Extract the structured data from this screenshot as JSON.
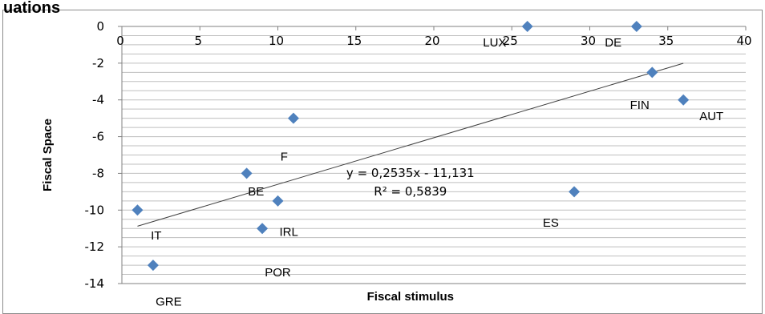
{
  "header": {
    "clipped_title": "uations"
  },
  "chart_data": {
    "type": "scatter",
    "xlabel": "Fiscal stimulus",
    "ylabel": "Fiscal Space",
    "xlim": [
      0,
      40
    ],
    "ylim": [
      -14,
      0
    ],
    "x_ticks": [
      0,
      5,
      10,
      15,
      20,
      25,
      30,
      35,
      40
    ],
    "y_ticks": [
      0,
      -2,
      -4,
      -6,
      -8,
      -10,
      -12,
      -14
    ],
    "x_tick_labels": [
      "0",
      "5",
      "10",
      "15",
      "20",
      "25",
      "30",
      "35",
      "40"
    ],
    "y_tick_labels": [
      "0",
      "-2",
      "-4",
      "-6",
      "-8",
      "-10",
      "-12",
      "-14"
    ],
    "x_axis_position": "top",
    "grid": true,
    "marker_color": "#4f81bd",
    "points": [
      {
        "x": 1,
        "y": -10
      },
      {
        "x": 2,
        "y": -13
      },
      {
        "x": 8,
        "y": -8
      },
      {
        "x": 9,
        "y": -11
      },
      {
        "x": 10,
        "y": -9.5
      },
      {
        "x": 11,
        "y": -5
      },
      {
        "x": 26,
        "y": 0
      },
      {
        "x": 29,
        "y": -9
      },
      {
        "x": 33,
        "y": 0
      },
      {
        "x": 34,
        "y": -2.5
      },
      {
        "x": 36,
        "y": -4
      }
    ],
    "annotations": [
      {
        "text": "IT",
        "x": 2.2,
        "y": -11.6
      },
      {
        "text": "GRE",
        "x": 3,
        "y": -15.2
      },
      {
        "text": "F",
        "x": 10.4,
        "y": -7.3
      },
      {
        "text": "BE",
        "x": 8.6,
        "y": -9.2
      },
      {
        "text": "IRL",
        "x": 10.7,
        "y": -11.4
      },
      {
        "text": "POR",
        "x": 10,
        "y": -13.6
      },
      {
        "text": "LUX",
        "x": 23.9,
        "y": -1.1
      },
      {
        "text": "DE",
        "x": 31.5,
        "y": -1.1
      },
      {
        "text": "ES",
        "x": 27.5,
        "y": -10.9
      },
      {
        "text": "FIN",
        "x": 33.2,
        "y": -4.5
      },
      {
        "text": "AUT",
        "x": 37.8,
        "y": -5.1
      }
    ],
    "trendline": {
      "slope": 0.2535,
      "intercept": -11.131,
      "x_range": [
        1,
        36
      ],
      "equation_text": "y = 0,2535x - 11,131",
      "r2_text": "R² = 0,5839"
    }
  }
}
